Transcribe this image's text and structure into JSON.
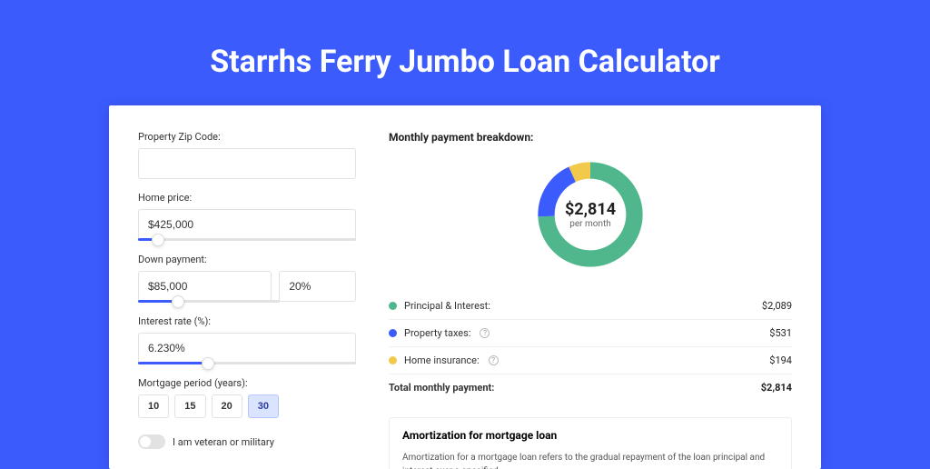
{
  "title": "Starrhs Ferry Jumbo Loan Calculator",
  "colors": {
    "page_bg": "#3b5bfd",
    "card_bg": "#ffffff",
    "green": "#4fb78b",
    "blue": "#3b5bfd",
    "yellow": "#f3c94c"
  },
  "form": {
    "zip": {
      "label": "Property Zip Code:",
      "value": ""
    },
    "home_price": {
      "label": "Home price:",
      "value": "$425,000",
      "slider_fill_pct": 9,
      "thumb_pct": 9
    },
    "down_payment": {
      "label": "Down payment:",
      "value": "$85,000",
      "pct": "20%",
      "slider_fill_pct": 28,
      "thumb_pct": 28
    },
    "interest": {
      "label": "Interest rate (%):",
      "value": "6.230%",
      "slider_fill_pct": 32,
      "thumb_pct": 32
    },
    "period": {
      "label": "Mortgage period (years):",
      "options": [
        "10",
        "15",
        "20",
        "30"
      ],
      "active": "30"
    },
    "veteran": {
      "label": "I am veteran or military",
      "on": false
    }
  },
  "breakdown": {
    "title": "Monthly payment breakdown:",
    "donut": {
      "amount": "$2,814",
      "sub": "per month",
      "slices": [
        {
          "key": "principal",
          "color": "#4fb78b",
          "pct": 74.2
        },
        {
          "key": "taxes",
          "color": "#3b5bfd",
          "pct": 18.9
        },
        {
          "key": "insurance",
          "color": "#f3c94c",
          "pct": 6.9
        }
      ]
    },
    "items": [
      {
        "dot": "#4fb78b",
        "label": "Principal & Interest:",
        "help": false,
        "value": "$2,089"
      },
      {
        "dot": "#3b5bfd",
        "label": "Property taxes:",
        "help": true,
        "value": "$531"
      },
      {
        "dot": "#f3c94c",
        "label": "Home insurance:",
        "help": true,
        "value": "$194"
      }
    ],
    "total": {
      "label": "Total monthly payment:",
      "value": "$2,814"
    }
  },
  "amort": {
    "title": "Amortization for mortgage loan",
    "text": "Amortization for a mortgage loan refers to the gradual repayment of the loan principal and interest over a specified"
  }
}
